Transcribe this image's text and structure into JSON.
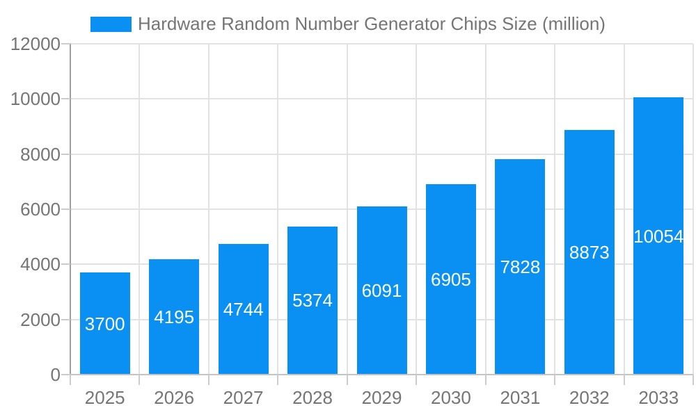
{
  "legend": {
    "label": "Hardware Random Number Generator Chips Size (million)"
  },
  "chart_data": {
    "type": "bar",
    "title": "Hardware Random Number Generator Chips Size (million)",
    "categories": [
      "2025",
      "2026",
      "2027",
      "2028",
      "2029",
      "2030",
      "2031",
      "2032",
      "2033"
    ],
    "series": [
      {
        "name": "Hardware Random Number Generator Chips Size (million)",
        "values": [
          3700,
          4195,
          4744,
          5374,
          6091,
          6905,
          7828,
          8873,
          10054
        ]
      }
    ],
    "bar_value_labels": [
      "3700",
      "4195",
      "4744",
      "5374",
      "6091",
      "6905",
      "7828",
      "8873",
      "10054"
    ],
    "xlabel": "",
    "ylabel": "",
    "ylim": [
      0,
      12000
    ],
    "yticks": [
      0,
      2000,
      4000,
      6000,
      8000,
      10000,
      12000
    ],
    "grid": "both",
    "legend_position": "top-center",
    "colors": {
      "bar": "#0a8ff2",
      "axis_text": "#757575",
      "bar_label_text": "#ffffff",
      "gridline": "#e2e2e2",
      "y_axis_line": "#9e9e9e",
      "x_baseline": "#c4c4c4",
      "tick": "#cccccc",
      "background": "#ffffff"
    }
  }
}
